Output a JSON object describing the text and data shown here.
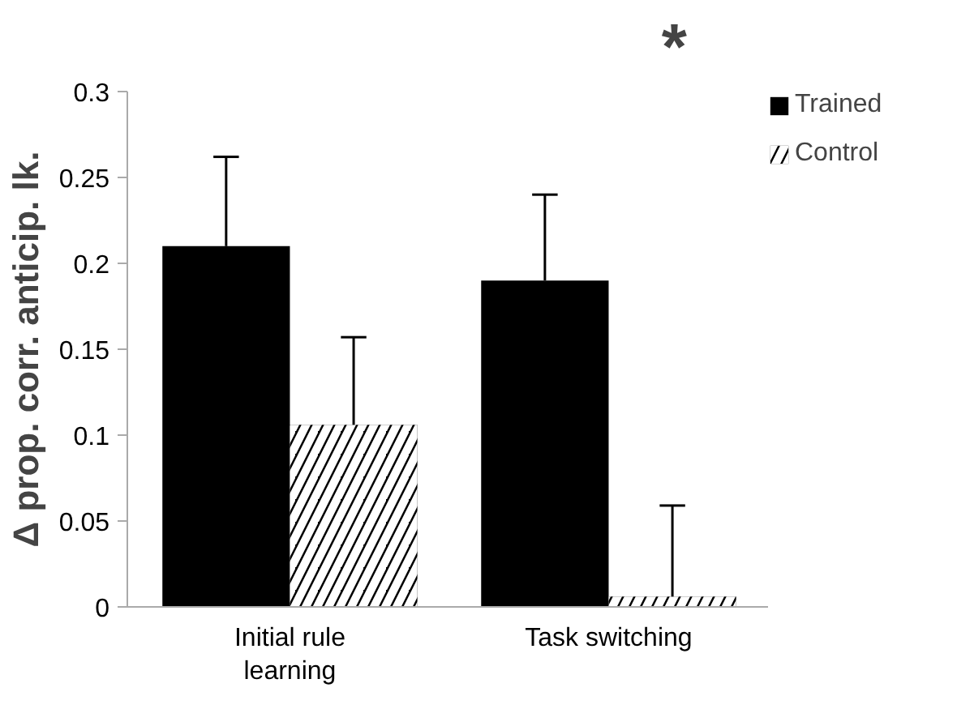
{
  "chart_data": {
    "type": "bar",
    "ylabel": "Δ prop. corr. anticip. lk.",
    "categories": [
      "Initial rule learning",
      "Task switching"
    ],
    "series": [
      {
        "name": "Trained",
        "color": "#000000",
        "values": [
          0.21,
          0.19
        ],
        "errors": [
          [
            0.21,
            0.262
          ],
          [
            0.19,
            0.24
          ]
        ]
      },
      {
        "name": "Control",
        "color": "#000000",
        "values": [
          0.106,
          0.006
        ],
        "errors": [
          [
            0.106,
            0.157
          ],
          [
            0.006,
            0.059
          ]
        ]
      }
    ],
    "ylim": [
      0,
      0.3
    ],
    "yticks": [
      0,
      0.05,
      0.1,
      0.15,
      0.2,
      0.25,
      0.3
    ],
    "annotations": [
      "*"
    ],
    "grid": false,
    "legend": "top right"
  }
}
